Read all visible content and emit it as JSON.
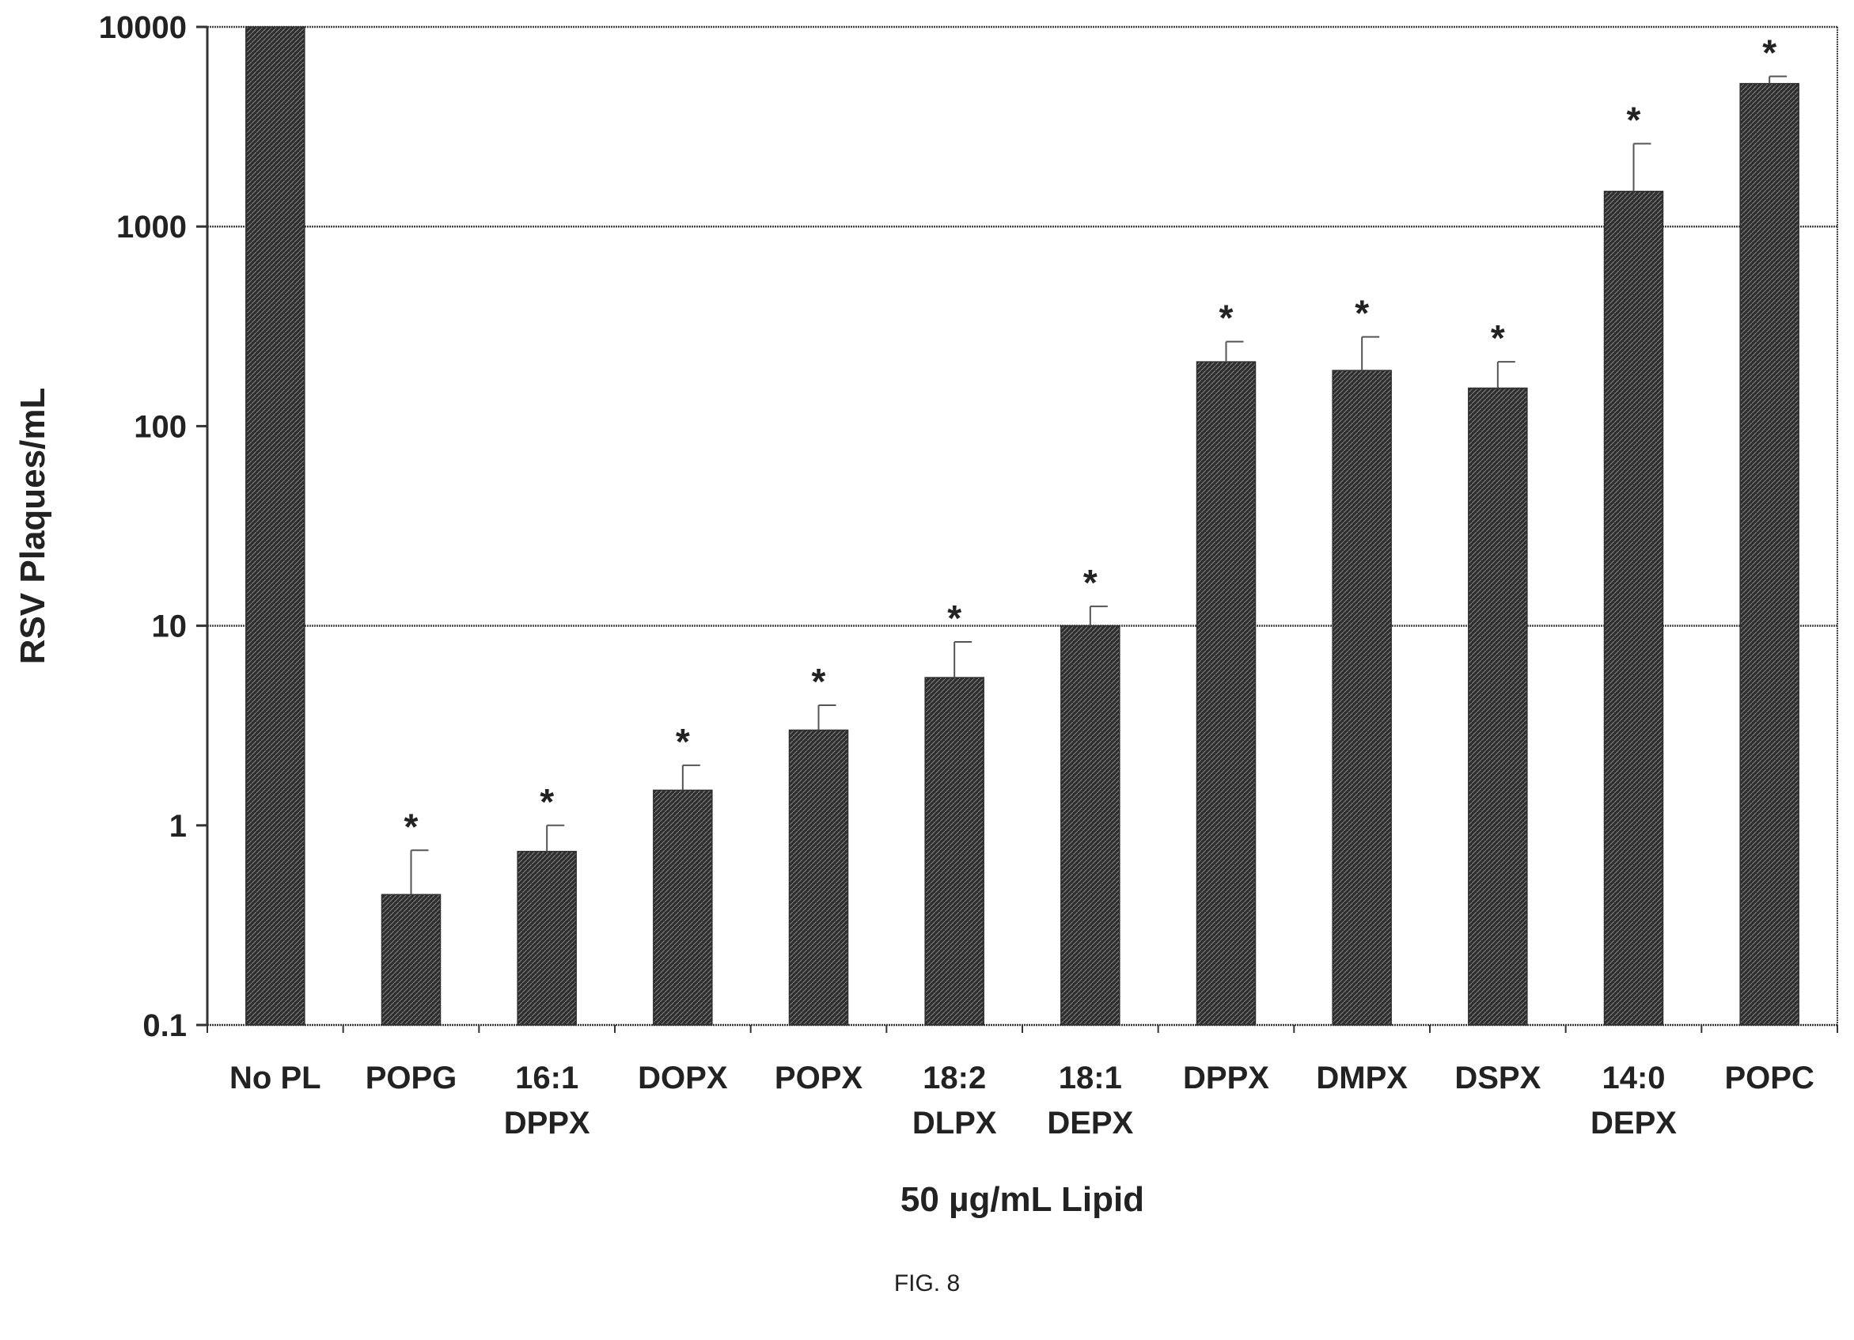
{
  "figure_label": "FIG. 8",
  "colors": {
    "bar": "#2e2e2e",
    "bar_hatch": "#7a7a7a",
    "axis": "#333333",
    "gridline": "#444444",
    "text": "#222222"
  },
  "chart_data": {
    "type": "bar",
    "title": "",
    "xlabel": "50 µg/mL Lipid",
    "ylabel": "RSV Plaques/mL",
    "y_scale": "log",
    "ylim": [
      0.1,
      10000
    ],
    "y_ticks": [
      {
        "value": 0.1,
        "label": "0.1"
      },
      {
        "value": 1,
        "label": "1"
      },
      {
        "value": 10,
        "label": "10"
      },
      {
        "value": 100,
        "label": "100"
      },
      {
        "value": 1000,
        "label": "1000"
      },
      {
        "value": 10000,
        "label": "10000"
      }
    ],
    "gridlines": [
      10,
      1000
    ],
    "categories": [
      [
        "No PL"
      ],
      [
        "POPG"
      ],
      [
        "16:1",
        "DPPX"
      ],
      [
        "DOPX"
      ],
      [
        "POPX"
      ],
      [
        "18:2",
        "DLPX"
      ],
      [
        "18:1",
        "DEPX"
      ],
      [
        "DPPX"
      ],
      [
        "DMPX"
      ],
      [
        "DSPX"
      ],
      [
        "14:0",
        "DEPX"
      ],
      [
        "POPC"
      ]
    ],
    "values": [
      10000,
      0.45,
      0.74,
      1.5,
      3.0,
      5.5,
      10,
      210,
      190,
      155,
      1500,
      5200
    ],
    "error_upper": [
      null,
      0.75,
      1.0,
      2.0,
      4.0,
      8.3,
      12.5,
      265,
      280,
      210,
      2600,
      5650
    ],
    "significance_marker": "*",
    "significant": [
      false,
      true,
      true,
      true,
      true,
      true,
      true,
      true,
      true,
      true,
      true,
      true
    ]
  }
}
